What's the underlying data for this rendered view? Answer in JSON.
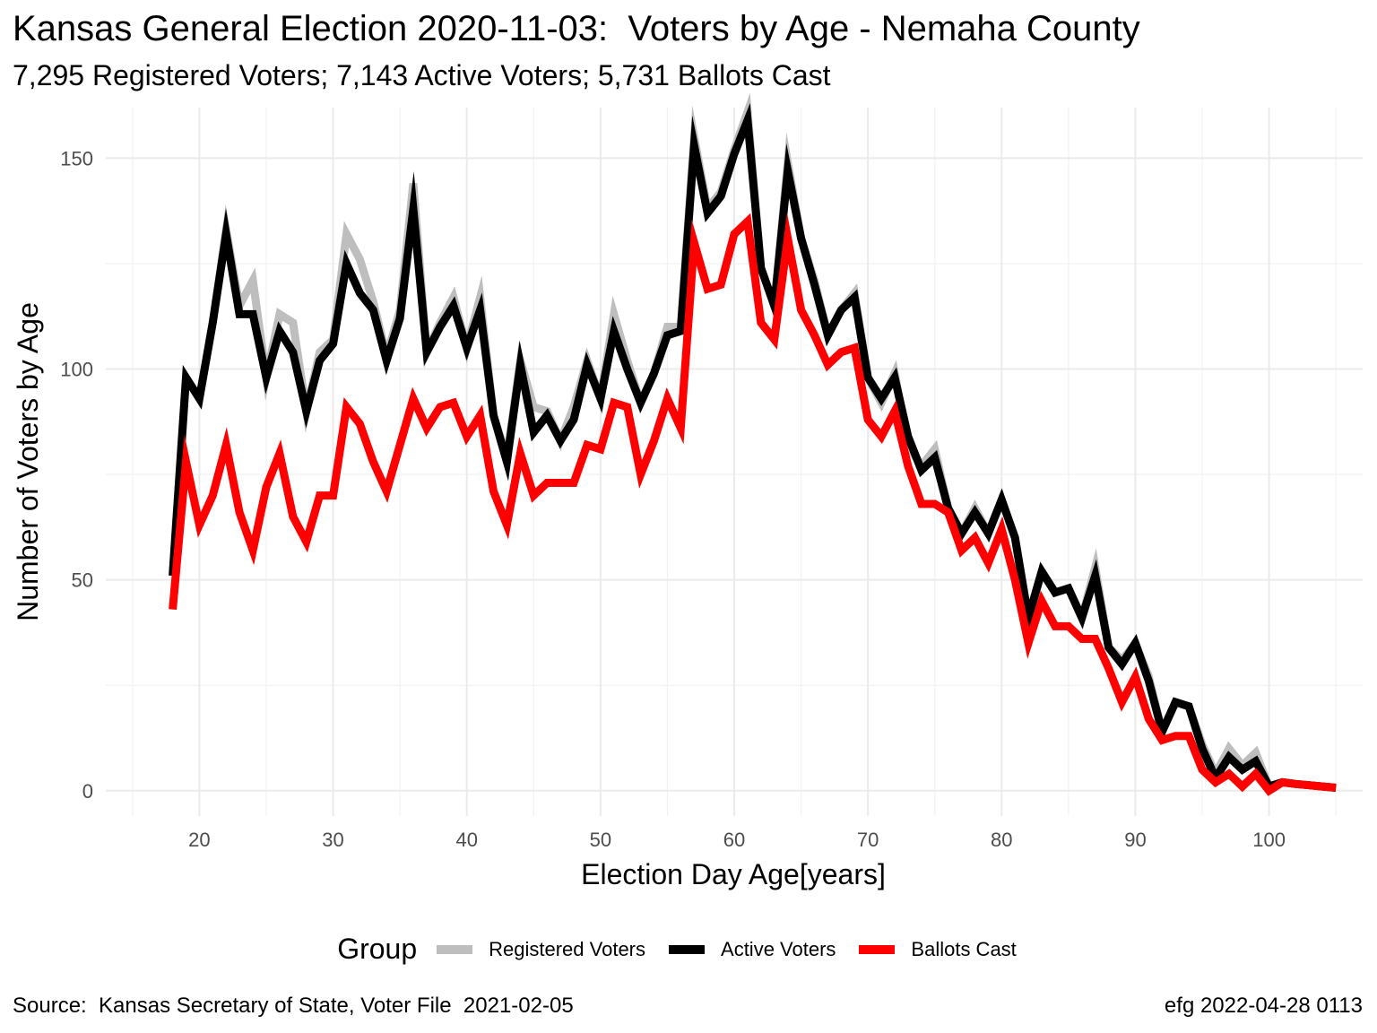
{
  "title": "Kansas General Election 2020-11-03:  Voters by Age - Nemaha County",
  "subtitle": "7,295 Registered Voters; 7,143 Active Voters; 5,731 Ballots Cast",
  "caption_left": "Source:  Kansas Secretary of State, Voter File  2021-02-05",
  "caption_right": "efg 2022-04-28 0113",
  "legend": {
    "title": "Group",
    "items": [
      {
        "label": "Registered Voters",
        "color": "#bebebe"
      },
      {
        "label": "Active Voters",
        "color": "#000000"
      },
      {
        "label": "Ballots Cast",
        "color": "#ff0000"
      }
    ]
  },
  "chart_data": {
    "type": "line",
    "xlabel": "Election Day Age[years]",
    "ylabel": "Number of Voters by Age",
    "xlim": [
      13,
      107
    ],
    "ylim": [
      -6,
      162
    ],
    "x_ticks": [
      20,
      30,
      40,
      50,
      60,
      70,
      80,
      90,
      100
    ],
    "y_ticks": [
      0,
      50,
      100,
      150
    ],
    "grid": true,
    "legend_position": "bottom",
    "x": [
      18,
      19,
      20,
      21,
      22,
      23,
      24,
      25,
      26,
      27,
      28,
      29,
      30,
      31,
      32,
      33,
      34,
      35,
      36,
      37,
      38,
      39,
      40,
      41,
      42,
      43,
      44,
      45,
      46,
      47,
      48,
      49,
      50,
      51,
      52,
      53,
      54,
      55,
      56,
      57,
      58,
      59,
      60,
      61,
      62,
      63,
      64,
      65,
      66,
      67,
      68,
      69,
      70,
      71,
      72,
      73,
      74,
      75,
      76,
      77,
      78,
      79,
      80,
      81,
      82,
      83,
      84,
      85,
      86,
      87,
      88,
      89,
      90,
      91,
      92,
      93,
      94,
      95,
      96,
      97,
      98,
      99,
      100,
      101,
      102,
      103,
      104,
      105
    ],
    "series": [
      {
        "name": "Registered Voters",
        "color": "#bebebe",
        "values": [
          51,
          98,
          93,
          111,
          133,
          115,
          121,
          98,
          113,
          111,
          90,
          104,
          107,
          132,
          126,
          116,
          103,
          114,
          144,
          104,
          111,
          117,
          105,
          117,
          89,
          79,
          102,
          91,
          90,
          83,
          91,
          102,
          93,
          113,
          102,
          92,
          99,
          110,
          110,
          155,
          138,
          142,
          152,
          161,
          124,
          115,
          149,
          131,
          121,
          108,
          114,
          118,
          98,
          92,
          99,
          82,
          77,
          81,
          67,
          61,
          67,
          61,
          69,
          60,
          41,
          52,
          47,
          48,
          41,
          53,
          34,
          31,
          35,
          27,
          14,
          21,
          20,
          11,
          4,
          10,
          6,
          9,
          1,
          2,
          1.6,
          1.3,
          1,
          0.7
        ]
      },
      {
        "name": "Active Voters",
        "color": "#000000",
        "values": [
          51,
          98,
          93,
          111,
          132,
          113,
          113,
          98,
          109,
          104,
          90,
          102,
          106,
          125,
          118,
          114,
          102,
          112,
          138,
          104,
          110,
          115,
          105,
          114,
          89,
          78,
          101,
          85,
          89,
          83,
          88,
          101,
          93,
          109,
          100,
          92,
          99,
          108,
          109,
          153,
          137,
          141,
          151,
          159,
          124,
          115,
          147,
          131,
          120,
          108,
          114,
          117,
          98,
          93,
          98,
          84,
          76,
          79,
          67,
          61,
          66,
          61,
          69,
          60,
          41,
          52,
          47,
          48,
          41,
          51,
          34,
          30,
          35,
          26,
          14,
          21,
          20,
          10,
          3,
          8,
          5,
          7,
          1,
          2,
          1.6,
          1.3,
          1,
          0.7
        ]
      },
      {
        "name": "Ballots Cast",
        "color": "#ff0000",
        "values": [
          43,
          78,
          63,
          70,
          82,
          66,
          57,
          72,
          80,
          65,
          59,
          70,
          70,
          91,
          87,
          78,
          71,
          82,
          93,
          86,
          91,
          92,
          84,
          89,
          71,
          63,
          80,
          70,
          73,
          73,
          73,
          82,
          81,
          92,
          91,
          75,
          83,
          93,
          86,
          130,
          119,
          120,
          132,
          135,
          111,
          107,
          131,
          114,
          108,
          101,
          104,
          105,
          88,
          84,
          90,
          77,
          68,
          68,
          66,
          57,
          60,
          54,
          62,
          50,
          35,
          45,
          39,
          39,
          36,
          36,
          29,
          21,
          27,
          17,
          12,
          13,
          13,
          5,
          2,
          4,
          1,
          4,
          0,
          2,
          1.6,
          1.3,
          1,
          0.7
        ]
      }
    ]
  }
}
